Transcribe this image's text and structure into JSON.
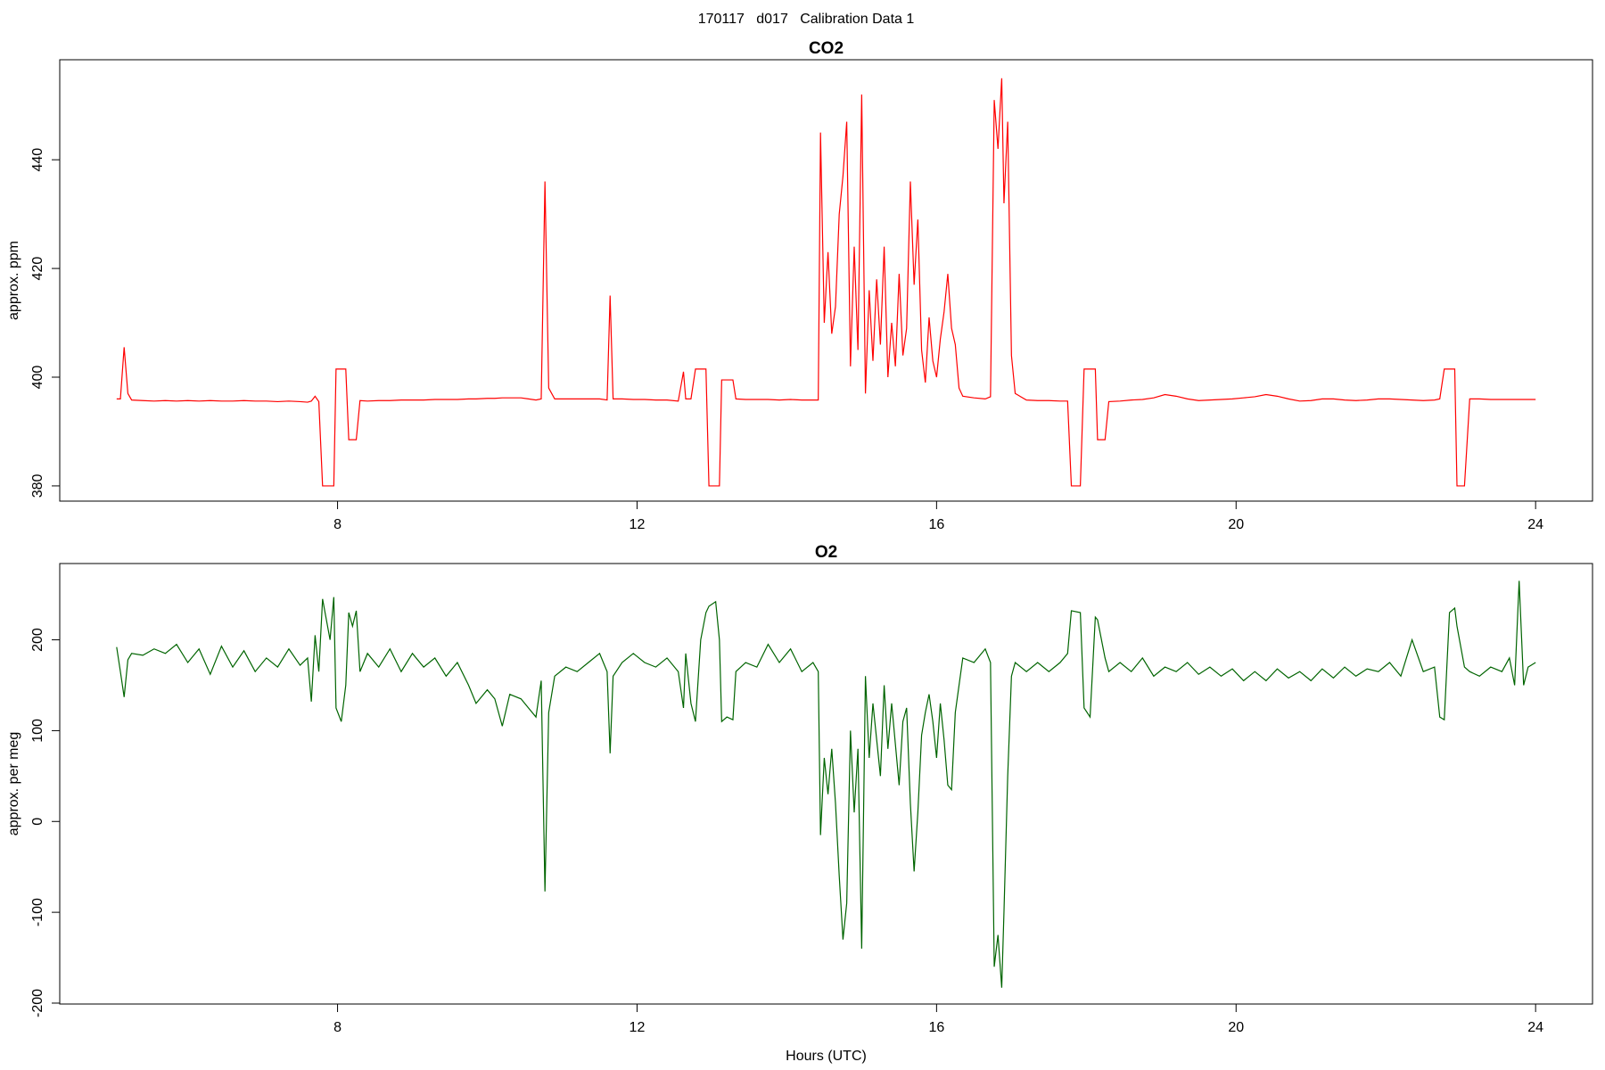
{
  "title": "170117   d017   Calibration Data 1",
  "chart_data": [
    {
      "type": "line",
      "title": "CO2",
      "y_label": "approx. ppm",
      "color": "#ff0000",
      "xlim": [
        4.29,
        24.76
      ],
      "ylim": [
        377.2,
        458.4
      ],
      "xticks": [
        8,
        12,
        16,
        20,
        24
      ],
      "yticks": [
        380,
        400,
        420,
        440
      ],
      "x": [
        5.05,
        5.1,
        5.15,
        5.2,
        5.25,
        5.4,
        5.55,
        5.7,
        5.85,
        6.0,
        6.15,
        6.3,
        6.45,
        6.6,
        6.75,
        6.9,
        7.05,
        7.2,
        7.35,
        7.5,
        7.6,
        7.65,
        7.7,
        7.75,
        7.8,
        7.9,
        7.95,
        7.98,
        8.05,
        8.11,
        8.15,
        8.2,
        8.25,
        8.3,
        8.4,
        8.55,
        8.7,
        8.85,
        9.0,
        9.15,
        9.3,
        9.45,
        9.6,
        9.75,
        9.85,
        10.0,
        10.1,
        10.2,
        10.3,
        10.45,
        10.55,
        10.65,
        10.72,
        10.77,
        10.82,
        10.9,
        11.05,
        11.2,
        11.35,
        11.5,
        11.6,
        11.64,
        11.68,
        11.8,
        11.95,
        12.1,
        12.25,
        12.4,
        12.55,
        12.62,
        12.65,
        12.72,
        12.78,
        12.85,
        12.92,
        12.96,
        13.05,
        13.1,
        13.13,
        13.2,
        13.28,
        13.32,
        13.45,
        13.6,
        13.75,
        13.9,
        14.05,
        14.2,
        14.35,
        14.42,
        14.45,
        14.5,
        14.55,
        14.6,
        14.65,
        14.7,
        14.75,
        14.8,
        14.85,
        14.9,
        14.95,
        15.0,
        15.05,
        15.1,
        15.15,
        15.2,
        15.25,
        15.3,
        15.35,
        15.4,
        15.45,
        15.5,
        15.55,
        15.6,
        15.65,
        15.7,
        15.75,
        15.8,
        15.85,
        15.9,
        15.95,
        16.0,
        16.05,
        16.1,
        16.15,
        16.2,
        16.25,
        16.3,
        16.35,
        16.5,
        16.65,
        16.72,
        16.77,
        16.82,
        16.87,
        16.9,
        16.95,
        17.0,
        17.05,
        17.2,
        17.35,
        17.5,
        17.65,
        17.75,
        17.8,
        17.92,
        17.97,
        18.05,
        18.12,
        18.15,
        18.25,
        18.3,
        18.45,
        18.6,
        18.75,
        18.9,
        19.05,
        19.2,
        19.35,
        19.5,
        19.65,
        19.8,
        19.95,
        20.1,
        20.25,
        20.4,
        20.55,
        20.7,
        20.85,
        21.0,
        21.15,
        21.3,
        21.45,
        21.6,
        21.75,
        21.9,
        22.05,
        22.2,
        22.35,
        22.5,
        22.65,
        22.72,
        22.78,
        22.85,
        22.92,
        22.95,
        23.05,
        23.12,
        23.25,
        23.4,
        23.55,
        23.65,
        23.72,
        23.78,
        23.84,
        23.9,
        24.0
      ],
      "values": [
        396,
        396,
        405.5,
        397,
        395.8,
        395.7,
        395.6,
        395.7,
        395.6,
        395.7,
        395.6,
        395.7,
        395.6,
        395.6,
        395.7,
        395.6,
        395.6,
        395.5,
        395.6,
        395.5,
        395.4,
        395.6,
        396.5,
        395.5,
        380,
        380,
        380,
        401.5,
        401.5,
        401.5,
        388.5,
        388.5,
        388.5,
        395.7,
        395.6,
        395.7,
        395.7,
        395.8,
        395.8,
        395.8,
        395.9,
        395.9,
        395.9,
        396,
        396,
        396.1,
        396.1,
        396.2,
        396.2,
        396.2,
        396,
        395.8,
        396,
        436,
        398,
        396,
        396,
        396,
        396,
        396,
        395.8,
        415,
        396,
        396,
        395.9,
        395.9,
        395.8,
        395.8,
        395.6,
        401,
        396,
        396,
        401.5,
        401.5,
        401.5,
        380,
        380,
        380,
        399.5,
        399.5,
        399.5,
        396,
        395.9,
        395.9,
        395.9,
        395.8,
        395.9,
        395.8,
        395.8,
        395.8,
        445,
        410,
        423,
        408,
        413,
        430,
        437,
        447,
        402,
        424,
        405,
        452,
        397,
        416,
        403,
        418,
        406,
        424,
        400,
        410,
        402,
        419,
        404,
        409,
        436,
        417,
        429,
        405,
        399,
        411,
        403,
        400,
        407,
        412,
        419,
        409,
        406,
        398,
        396.5,
        396.2,
        396,
        396.4,
        451,
        442,
        455,
        432,
        447,
        404,
        397,
        395.8,
        395.7,
        395.7,
        395.6,
        395.6,
        380,
        380,
        401.5,
        401.5,
        401.5,
        388.5,
        388.5,
        395.5,
        395.6,
        395.8,
        395.9,
        396.2,
        396.8,
        396.5,
        396,
        395.7,
        395.8,
        395.9,
        396,
        396.2,
        396.4,
        396.8,
        396.5,
        396,
        395.6,
        395.7,
        396,
        396,
        395.8,
        395.7,
        395.8,
        396,
        396,
        395.9,
        395.8,
        395.7,
        395.8,
        396,
        401.5,
        401.5,
        401.5,
        380,
        380,
        396,
        396,
        395.9,
        395.9,
        395.9,
        395.9,
        395.9,
        395.9,
        395.9,
        395.9
      ]
    },
    {
      "type": "line",
      "title": "O2",
      "y_label": "approx. per meg",
      "x_label": "Hours (UTC)",
      "color": "#006400",
      "xlim": [
        4.29,
        24.76
      ],
      "ylim": [
        -201,
        284
      ],
      "xticks": [
        8,
        12,
        16,
        20,
        24
      ],
      "yticks": [
        -200,
        -100,
        0,
        100,
        200
      ],
      "x": [
        5.05,
        5.1,
        5.15,
        5.2,
        5.25,
        5.4,
        5.55,
        5.7,
        5.85,
        6.0,
        6.15,
        6.3,
        6.45,
        6.6,
        6.75,
        6.9,
        7.05,
        7.2,
        7.35,
        7.5,
        7.6,
        7.65,
        7.7,
        7.75,
        7.8,
        7.9,
        7.95,
        7.98,
        8.05,
        8.11,
        8.15,
        8.2,
        8.25,
        8.3,
        8.4,
        8.55,
        8.7,
        8.85,
        9.0,
        9.15,
        9.3,
        9.45,
        9.6,
        9.75,
        9.85,
        10.0,
        10.1,
        10.2,
        10.3,
        10.45,
        10.55,
        10.65,
        10.72,
        10.77,
        10.82,
        10.9,
        11.05,
        11.2,
        11.35,
        11.5,
        11.6,
        11.64,
        11.68,
        11.8,
        11.95,
        12.1,
        12.25,
        12.4,
        12.55,
        12.62,
        12.65,
        12.72,
        12.78,
        12.85,
        12.92,
        12.96,
        13.05,
        13.1,
        13.13,
        13.2,
        13.28,
        13.32,
        13.45,
        13.6,
        13.75,
        13.9,
        14.05,
        14.2,
        14.35,
        14.42,
        14.45,
        14.5,
        14.55,
        14.6,
        14.65,
        14.7,
        14.75,
        14.8,
        14.85,
        14.9,
        14.95,
        15.0,
        15.05,
        15.1,
        15.15,
        15.2,
        15.25,
        15.3,
        15.35,
        15.4,
        15.45,
        15.5,
        15.55,
        15.6,
        15.65,
        15.7,
        15.75,
        15.8,
        15.85,
        15.9,
        15.95,
        16.0,
        16.05,
        16.1,
        16.15,
        16.2,
        16.25,
        16.3,
        16.35,
        16.5,
        16.65,
        16.72,
        16.77,
        16.82,
        16.87,
        16.9,
        16.95,
        17.0,
        17.05,
        17.2,
        17.35,
        17.5,
        17.65,
        17.75,
        17.8,
        17.92,
        17.97,
        18.05,
        18.12,
        18.15,
        18.25,
        18.3,
        18.45,
        18.6,
        18.75,
        18.9,
        19.05,
        19.2,
        19.35,
        19.5,
        19.65,
        19.8,
        19.95,
        20.1,
        20.25,
        20.4,
        20.55,
        20.7,
        20.85,
        21.0,
        21.15,
        21.3,
        21.45,
        21.6,
        21.75,
        21.9,
        22.05,
        22.2,
        22.35,
        22.5,
        22.65,
        22.72,
        22.78,
        22.85,
        22.92,
        22.95,
        23.05,
        23.12,
        23.25,
        23.4,
        23.55,
        23.65,
        23.72,
        23.78,
        23.84,
        23.9,
        24.0
      ],
      "values": [
        192,
        165,
        137,
        178,
        185,
        183,
        190,
        185,
        195,
        175,
        190,
        162,
        193,
        170,
        188,
        165,
        180,
        170,
        190,
        172,
        180,
        132,
        205,
        165,
        245,
        200,
        247,
        125,
        110,
        150,
        230,
        215,
        232,
        165,
        185,
        170,
        190,
        165,
        185,
        170,
        180,
        160,
        175,
        150,
        130,
        145,
        135,
        105,
        140,
        135,
        125,
        115,
        155,
        -77,
        120,
        160,
        170,
        165,
        175,
        185,
        165,
        75,
        160,
        175,
        185,
        175,
        170,
        180,
        165,
        125,
        185,
        130,
        110,
        200,
        230,
        237,
        242,
        200,
        110,
        115,
        112,
        165,
        175,
        170,
        195,
        175,
        190,
        165,
        175,
        165,
        -15,
        70,
        30,
        80,
        20,
        -60,
        -130,
        -90,
        100,
        10,
        80,
        -140,
        160,
        70,
        130,
        90,
        50,
        150,
        80,
        130,
        85,
        40,
        110,
        125,
        20,
        -55,
        10,
        95,
        120,
        140,
        110,
        70,
        130,
        90,
        40,
        35,
        120,
        150,
        180,
        175,
        190,
        175,
        -160,
        -125,
        -183,
        -100,
        50,
        160,
        175,
        165,
        175,
        165,
        175,
        185,
        232,
        230,
        125,
        115,
        225,
        222,
        180,
        165,
        175,
        165,
        180,
        160,
        170,
        165,
        175,
        162,
        170,
        160,
        168,
        155,
        165,
        155,
        168,
        158,
        165,
        155,
        168,
        158,
        170,
        160,
        168,
        165,
        175,
        160,
        200,
        165,
        170,
        115,
        112,
        230,
        235,
        215,
        170,
        165,
        160,
        170,
        165,
        180,
        150,
        265,
        150,
        170,
        175
      ]
    }
  ]
}
